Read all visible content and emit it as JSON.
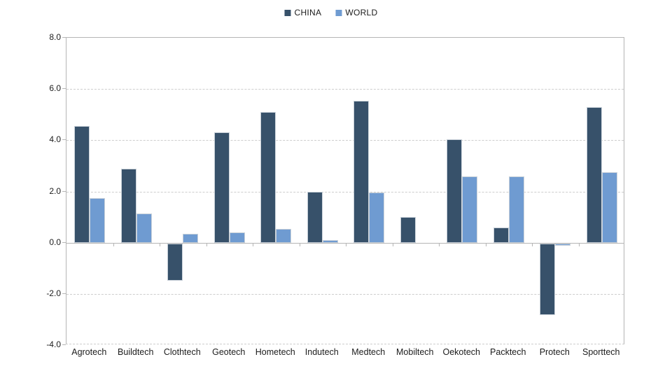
{
  "chart_data": {
    "type": "bar",
    "title": "",
    "xlabel": "",
    "ylabel": "",
    "categories": [
      "Agrotech",
      "Buildtech",
      "Clothtech",
      "Geotech",
      "Hometech",
      "Indutech",
      "Medtech",
      "Mobiltech",
      "Oekotech",
      "Packtech",
      "Protech",
      "Sporttech"
    ],
    "series": [
      {
        "name": "CHINA",
        "color": "#37516a",
        "values": [
          4.55,
          2.9,
          -1.45,
          4.3,
          5.1,
          2.0,
          5.55,
          1.0,
          4.05,
          0.6,
          -2.8,
          5.3
        ]
      },
      {
        "name": "WORLD",
        "color": "#6f9bd1",
        "values": [
          1.75,
          1.15,
          0.35,
          0.4,
          0.55,
          0.1,
          1.95,
          0.0,
          2.6,
          2.6,
          -0.1,
          2.75
        ]
      }
    ],
    "ylim": [
      -4.0,
      8.0
    ],
    "yticks": [
      8,
      6,
      4,
      2,
      0,
      -2,
      -4
    ],
    "ytick_labels": [
      "8.0",
      "6.0",
      "4.0",
      "2.0",
      "0.0",
      "-2.0",
      "-4.0"
    ],
    "grid": "horizontal-dashed",
    "legend_position": "top-center"
  },
  "legend": {
    "items": [
      {
        "label": "CHINA",
        "color": "#37516a"
      },
      {
        "label": "WORLD",
        "color": "#6f9bd1"
      }
    ]
  },
  "colors": {
    "background": "#ffffff",
    "axis": "#b5b5b5",
    "gridline": "#cdcdcd",
    "text": "#1c1c1c",
    "bar_border": "#c9d1d9"
  }
}
